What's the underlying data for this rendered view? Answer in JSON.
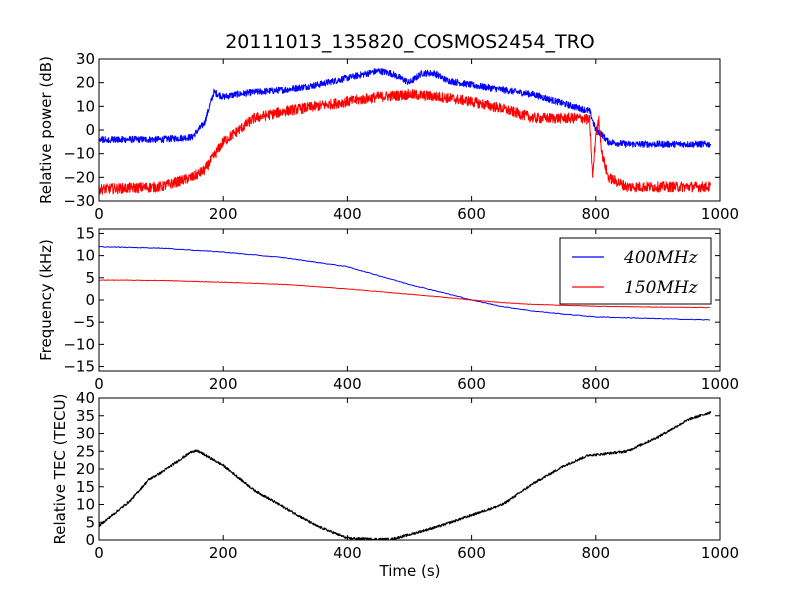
{
  "figure": {
    "title": "20111013_135820_COSMOS2454_TRO"
  },
  "chart_data": [
    {
      "id": "power",
      "type": "line",
      "title": "20111013_135820_COSMOS2454_TRO",
      "xlabel": "",
      "ylabel": "Relative power (dB)",
      "xlim": [
        0,
        1000
      ],
      "ylim": [
        -30,
        30
      ],
      "xticks": [
        "0",
        "200",
        "400",
        "600",
        "800",
        "1000"
      ],
      "yticks": [
        "30",
        "20",
        "10",
        "0",
        "−10",
        "−20",
        "−30"
      ],
      "grid": false,
      "noisy": true,
      "series": [
        {
          "color": "#0000ff",
          "x": [
            0,
            100,
            150,
            170,
            185,
            200,
            220,
            250,
            300,
            350,
            400,
            450,
            470,
            500,
            520,
            540,
            560,
            600,
            650,
            700,
            750,
            790,
            800,
            810,
            820,
            850,
            900,
            985
          ],
          "y": [
            -4,
            -4,
            -3,
            3,
            16,
            14,
            15,
            16,
            17,
            19,
            22,
            25,
            24,
            20,
            24,
            24,
            21,
            19,
            17,
            15,
            11,
            8,
            0,
            -2,
            -5,
            -6,
            -6,
            -6
          ],
          "noise": 1.4
        },
        {
          "color": "#ff0000",
          "x": [
            0,
            100,
            150,
            170,
            200,
            250,
            300,
            350,
            400,
            450,
            500,
            550,
            600,
            650,
            700,
            750,
            780,
            790,
            795,
            800,
            805,
            810,
            820,
            850,
            900,
            985
          ],
          "y": [
            -25,
            -24,
            -20,
            -17,
            -5,
            5,
            8,
            10,
            12,
            14,
            15,
            14,
            12,
            9,
            5,
            5,
            5,
            4,
            -20,
            -2,
            4,
            -10,
            -20,
            -24,
            -24,
            -24
          ],
          "noise": 2.2
        }
      ]
    },
    {
      "id": "frequency",
      "type": "line",
      "xlabel": "",
      "ylabel": "Frequency (kHz)",
      "xlim": [
        0,
        1000
      ],
      "ylim": [
        -16,
        16
      ],
      "xticks": [
        "0",
        "200",
        "400",
        "600",
        "800",
        "1000"
      ],
      "yticks": [
        "15",
        "10",
        "5",
        "0",
        "−5",
        "−10",
        "−15"
      ],
      "grid": false,
      "legend": "top-right",
      "noisy": false,
      "series": [
        {
          "name": "400MHz",
          "color": "#0000ff",
          "x": [
            0,
            100,
            200,
            300,
            400,
            450,
            500,
            550,
            600,
            650,
            700,
            750,
            800,
            900,
            985
          ],
          "y": [
            12,
            11.7,
            10.8,
            9.5,
            7.5,
            5.5,
            3.5,
            1.8,
            0,
            -1.5,
            -2.5,
            -3.2,
            -3.8,
            -4.2,
            -4.5
          ],
          "noise": 0.08
        },
        {
          "name": "150MHz",
          "color": "#ff0000",
          "x": [
            0,
            100,
            200,
            300,
            400,
            500,
            550,
            600,
            650,
            700,
            800,
            900,
            985
          ],
          "y": [
            4.5,
            4.4,
            4,
            3.5,
            2.5,
            1.3,
            0.7,
            0,
            -0.6,
            -1,
            -1.4,
            -1.6,
            -1.7
          ],
          "noise": 0.05
        }
      ]
    },
    {
      "id": "tec",
      "type": "line",
      "xlabel": "Time (s)",
      "ylabel": "Relative TEC (TECU)",
      "xlim": [
        0,
        1000
      ],
      "ylim": [
        0,
        40
      ],
      "xticks": [
        "0",
        "200",
        "400",
        "600",
        "800",
        "1000"
      ],
      "yticks": [
        "40",
        "35",
        "30",
        "25",
        "20",
        "15",
        "10",
        "5",
        "0"
      ],
      "grid": false,
      "noisy": true,
      "series": [
        {
          "color": "#000000",
          "x": [
            0,
            50,
            80,
            100,
            150,
            160,
            200,
            250,
            300,
            350,
            400,
            450,
            470,
            500,
            550,
            600,
            650,
            700,
            750,
            790,
            800,
            850,
            900,
            950,
            985
          ],
          "y": [
            4,
            11,
            17,
            19,
            25,
            25,
            21,
            14,
            9,
            4,
            0.5,
            0.2,
            0.2,
            1.5,
            4,
            7,
            10,
            16,
            21,
            24,
            24,
            25,
            29,
            34,
            36
          ],
          "noise": 0.35
        }
      ]
    }
  ]
}
